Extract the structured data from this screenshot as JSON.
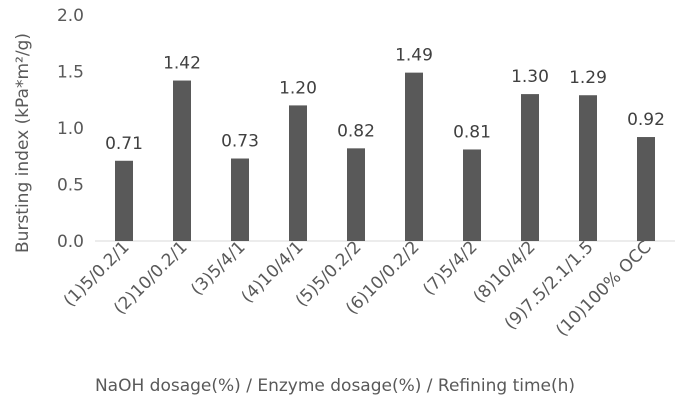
{
  "chart_data": {
    "type": "bar",
    "categories": [
      "(1)5/0.2/1",
      "(2)10/0.2/1",
      "(3)5/4/1",
      "(4)10/4/1",
      "(5)5/0.2/2",
      "(6)10/0.2/2",
      "(7)5/4/2",
      "(8)10/4/2",
      "(9)7.5/2.1/1.5",
      "(10)100% OCC"
    ],
    "values": [
      0.71,
      1.42,
      0.73,
      1.2,
      0.82,
      1.49,
      0.81,
      1.3,
      1.29,
      0.92
    ],
    "data_labels": [
      "0.71",
      "1.42",
      "0.73",
      "1.20",
      "0.82",
      "1.49",
      "0.81",
      "1.30",
      "1.29",
      "0.92"
    ],
    "y_ticks": [
      "0.0",
      "0.5",
      "1.0",
      "1.5",
      "2.0"
    ],
    "ylim": [
      0,
      2.0
    ],
    "xlabel": "NaOH dosage(%) / Enzyme dosage(%) / Refining time(h)",
    "ylabel": "Bursting index (kPa*m²/g)",
    "grid": false,
    "legend": "none",
    "colors": {
      "bar": "#595959",
      "axis": "#d9d9d9",
      "text": "#595959"
    }
  }
}
